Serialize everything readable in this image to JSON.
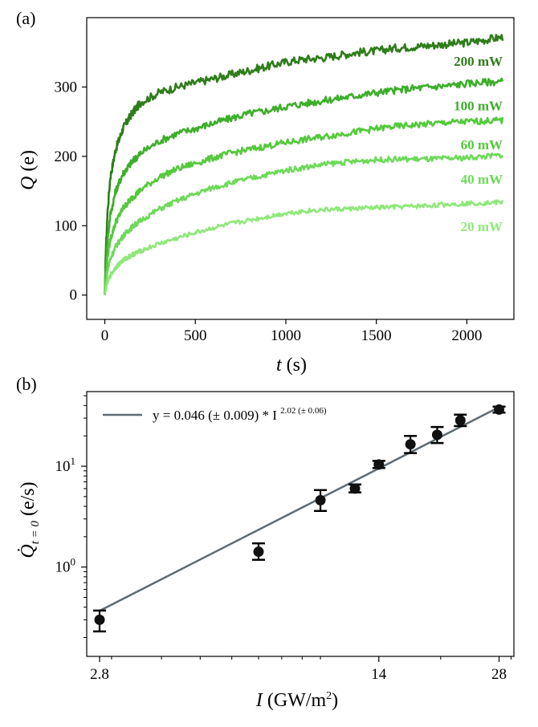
{
  "chart_data": [
    {
      "panel": "(a)",
      "type": "line",
      "xlabel_var": "t",
      "xlabel_unit": "(s)",
      "ylabel_var": "Q",
      "ylabel_unit": "(e)",
      "xlim": [
        -100,
        2260
      ],
      "ylim": [
        -35,
        400
      ],
      "xticks": [
        0,
        500,
        1000,
        1500,
        2000
      ],
      "yticks": [
        0,
        100,
        200,
        300
      ],
      "series": [
        {
          "name": "200 mW",
          "color": "#2e7d1a",
          "x": [
            0,
            5,
            15,
            30,
            60,
            100,
            150,
            200,
            300,
            400,
            500,
            600,
            700,
            800,
            900,
            1000,
            1100,
            1200,
            1300,
            1400,
            1500,
            1600,
            1700,
            1800,
            1900,
            2000,
            2100,
            2200
          ],
          "y": [
            0,
            60,
            120,
            170,
            210,
            240,
            262,
            278,
            292,
            300,
            306,
            312,
            318,
            324,
            330,
            336,
            340,
            342,
            346,
            350,
            352,
            356,
            358,
            360,
            362,
            364,
            368,
            372
          ]
        },
        {
          "name": "100 mW",
          "color": "#3dae2b",
          "x": [
            0,
            5,
            15,
            30,
            60,
            100,
            150,
            200,
            300,
            400,
            500,
            600,
            700,
            800,
            900,
            1000,
            1100,
            1200,
            1300,
            1400,
            1500,
            1600,
            1700,
            1800,
            1900,
            2000,
            2100,
            2200
          ],
          "y": [
            0,
            40,
            80,
            115,
            150,
            175,
            192,
            205,
            222,
            233,
            240,
            248,
            255,
            262,
            266,
            272,
            276,
            280,
            284,
            288,
            292,
            295,
            298,
            300,
            302,
            305,
            307,
            308
          ]
        },
        {
          "name": "60 mW",
          "color": "#54c93c",
          "x": [
            0,
            5,
            15,
            30,
            60,
            100,
            150,
            200,
            300,
            400,
            500,
            600,
            700,
            800,
            900,
            1000,
            1100,
            1200,
            1300,
            1400,
            1500,
            1600,
            1700,
            1800,
            1900,
            2000,
            2100,
            2200
          ],
          "y": [
            0,
            25,
            55,
            80,
            105,
            125,
            140,
            152,
            170,
            182,
            190,
            198,
            205,
            210,
            215,
            220,
            224,
            228,
            232,
            236,
            240,
            243,
            245,
            247,
            249,
            250,
            251,
            252
          ]
        },
        {
          "name": "40 mW",
          "color": "#6ed95a",
          "x": [
            0,
            5,
            15,
            30,
            60,
            100,
            150,
            200,
            300,
            400,
            500,
            600,
            700,
            800,
            900,
            1000,
            1100,
            1200,
            1300,
            1400,
            1500,
            1600,
            1700,
            1800,
            1900,
            2000,
            2100,
            2200
          ],
          "y": [
            0,
            15,
            35,
            52,
            70,
            85,
            98,
            108,
            124,
            136,
            146,
            155,
            162,
            168,
            174,
            180,
            184,
            188,
            191,
            193,
            195,
            196,
            196,
            196,
            197,
            198,
            200,
            202
          ]
        },
        {
          "name": "20 mW",
          "color": "#8ee87a",
          "x": [
            0,
            5,
            15,
            30,
            60,
            100,
            150,
            200,
            300,
            400,
            500,
            600,
            700,
            800,
            900,
            1000,
            1100,
            1200,
            1300,
            1400,
            1500,
            1600,
            1700,
            1800,
            1900,
            2000,
            2100,
            2200
          ],
          "y": [
            0,
            8,
            18,
            28,
            40,
            50,
            58,
            64,
            74,
            82,
            90,
            97,
            103,
            108,
            113,
            118,
            121,
            123,
            124,
            125,
            126,
            127,
            128,
            129,
            131,
            132,
            133,
            134
          ]
        }
      ]
    },
    {
      "panel": "(b)",
      "type": "scatter",
      "xscale": "log",
      "yscale": "log",
      "xlabel_var": "I",
      "xlabel_unit": "(GW/m",
      "xlabel_sup": "2",
      "xlabel_close": ")",
      "ylabel_var": "Q̇",
      "ylabel_sub": "t = 0",
      "ylabel_unit": "(e/s)",
      "xlim": [
        2.6,
        30.5
      ],
      "ylim": [
        0.13,
        55
      ],
      "xticks": [
        2.8,
        14,
        28
      ],
      "xtick_labels": [
        "2.8",
        "14",
        "28"
      ],
      "yticks": [
        1,
        10
      ],
      "ytick_base": "10",
      "ytick_exps": [
        "0",
        "1"
      ],
      "points": [
        {
          "x": 2.8,
          "y": 0.3,
          "ylo": 0.23,
          "yhi": 0.37
        },
        {
          "x": 7.0,
          "y": 1.42,
          "ylo": 1.18,
          "yhi": 1.72
        },
        {
          "x": 10.0,
          "y": 4.6,
          "ylo": 3.6,
          "yhi": 5.8
        },
        {
          "x": 12.2,
          "y": 6.0,
          "ylo": 5.5,
          "yhi": 6.6
        },
        {
          "x": 14.0,
          "y": 10.4,
          "ylo": 9.6,
          "yhi": 11.3
        },
        {
          "x": 16.8,
          "y": 16.5,
          "ylo": 13.5,
          "yhi": 20.0
        },
        {
          "x": 19.6,
          "y": 20.5,
          "ylo": 17.0,
          "yhi": 24.5
        },
        {
          "x": 22.4,
          "y": 28.5,
          "ylo": 25.0,
          "yhi": 32.5
        },
        {
          "x": 28.0,
          "y": 36.5,
          "ylo": 34.0,
          "yhi": 39.0
        }
      ],
      "fit": {
        "a": 0.046,
        "b": 2.02,
        "color": "#5f6b72"
      },
      "legend": {
        "text": "y = 0.046 (± 0.009) * I ",
        "exponent": "2.02 (± 0.06)",
        "location": "upper-left"
      }
    }
  ]
}
